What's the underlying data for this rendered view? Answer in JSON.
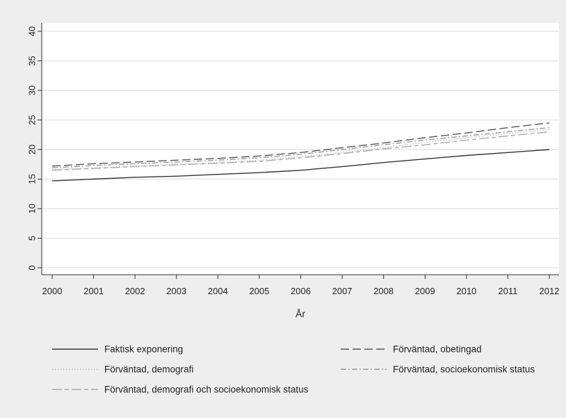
{
  "chart_data": {
    "type": "line",
    "title": "",
    "xlabel": "År",
    "ylabel": "",
    "x": [
      2000,
      2001,
      2002,
      2003,
      2004,
      2005,
      2006,
      2007,
      2008,
      2009,
      2010,
      2011,
      2012
    ],
    "x_ticks": [
      "2000",
      "2001",
      "2002",
      "2003",
      "2004",
      "2005",
      "2006",
      "2007",
      "2008",
      "2009",
      "2010",
      "2011",
      "2012"
    ],
    "y_ticks": [
      "0",
      "5",
      "10",
      "15",
      "20",
      "25",
      "30",
      "35",
      "40"
    ],
    "ylim": [
      0,
      40
    ],
    "xlim": [
      2000,
      2012
    ],
    "grid": "horizontal",
    "legend_position": "bottom",
    "colors": {
      "background": "#eeeeee",
      "plot_background": "#ffffff",
      "grid": "#e6e6e6",
      "axis": "#333333"
    },
    "series": [
      {
        "name": "Faktisk exponering",
        "color": "#333333",
        "dash": "solid",
        "values": [
          14.7,
          15.0,
          15.3,
          15.5,
          15.8,
          16.1,
          16.5,
          17.1,
          17.8,
          18.4,
          19.0,
          19.5,
          20.0
        ]
      },
      {
        "name": "Förväntad, obetingad",
        "color": "#555555",
        "dash": "long-dash",
        "values": [
          17.2,
          17.6,
          17.9,
          18.2,
          18.5,
          18.9,
          19.5,
          20.3,
          21.1,
          22.0,
          22.8,
          23.7,
          24.5
        ]
      },
      {
        "name": "Förväntad, demografi",
        "color": "#bbbbbb",
        "dash": "dotted",
        "values": [
          16.6,
          16.9,
          17.2,
          17.5,
          17.8,
          18.2,
          18.8,
          19.5,
          20.3,
          21.2,
          22.0,
          22.7,
          23.4
        ]
      },
      {
        "name": "Förväntad, socioekonomisk status",
        "color": "#999999",
        "dash": "dash-dot",
        "values": [
          16.9,
          17.3,
          17.6,
          17.9,
          18.2,
          18.6,
          19.2,
          20.0,
          20.8,
          21.6,
          22.3,
          23.0,
          23.7
        ]
      },
      {
        "name": "Förväntad, demografi och socioekonomisk status",
        "color": "#aaaaaa",
        "dash": "long-short",
        "values": [
          16.5,
          16.8,
          17.1,
          17.4,
          17.7,
          18.0,
          18.6,
          19.3,
          20.1,
          20.8,
          21.6,
          22.3,
          23.0
        ]
      }
    ]
  }
}
